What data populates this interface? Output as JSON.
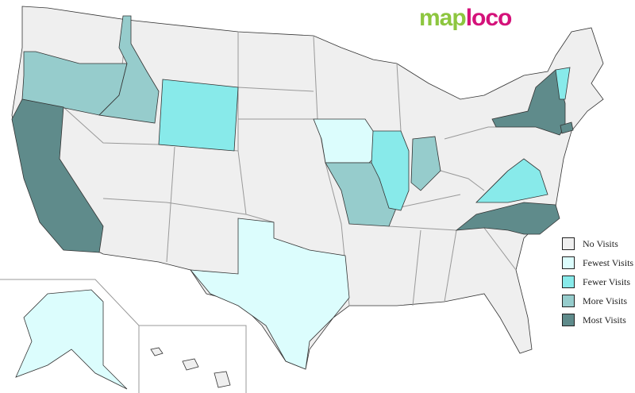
{
  "logo": {
    "part1": "map",
    "part2": "loco"
  },
  "legend": [
    {
      "label": "No Visits",
      "color": "#efefef"
    },
    {
      "label": "Fewest Visits",
      "color": "#dcfdfd"
    },
    {
      "label": "Fewer Visits",
      "color": "#88eaea"
    },
    {
      "label": "More Visits",
      "color": "#96cccc"
    },
    {
      "label": "Most Visits",
      "color": "#5f8b8b"
    }
  ],
  "states": {
    "Oregon": "More Visits",
    "Idaho": "More Visits",
    "Wyoming": "Fewer Visits",
    "California": "Most Visits",
    "Texas": "Fewest Visits",
    "Iowa": "Fewest Visits",
    "Missouri": "More Visits",
    "Illinois": "Fewer Visits",
    "Indiana": "More Visits",
    "Virginia": "Fewer Visits",
    "North Carolina": "Most Visits",
    "New York": "Most Visits",
    "Vermont": "Fewer Visits",
    "Connecticut": "Most Visits",
    "Alaska": "Fewest Visits"
  }
}
